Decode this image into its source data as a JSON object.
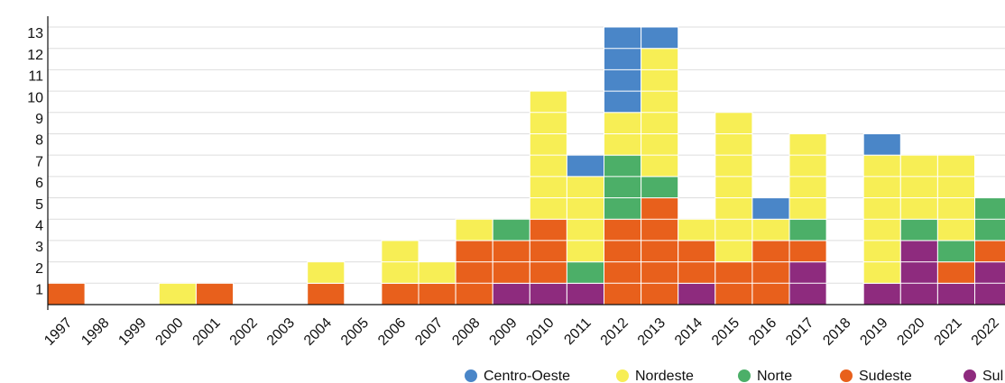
{
  "chart_data": {
    "type": "stacked_bar",
    "categories": [
      "1997",
      "1998",
      "1999",
      "2000",
      "2001",
      "2002",
      "2003",
      "2004",
      "2005",
      "2006",
      "2007",
      "2008",
      "2009",
      "2010",
      "2011",
      "2012",
      "2013",
      "2014",
      "2015",
      "2016",
      "2017",
      "2018",
      "2019",
      "2020",
      "2021",
      "2022"
    ],
    "series": [
      {
        "name": "Centro-Oeste",
        "color": "#4a86c8",
        "values": [
          0,
          0,
          0,
          0,
          0,
          0,
          0,
          0,
          0,
          0,
          0,
          0,
          0,
          0,
          1,
          4,
          1,
          0,
          0,
          1,
          0,
          0,
          1,
          0,
          0,
          0
        ]
      },
      {
        "name": "Nordeste",
        "color": "#f7ee55",
        "values": [
          0,
          0,
          0,
          1,
          0,
          0,
          0,
          1,
          0,
          2,
          1,
          1,
          0,
          6,
          4,
          2,
          6,
          1,
          7,
          1,
          4,
          0,
          6,
          3,
          4,
          0
        ]
      },
      {
        "name": "Norte",
        "color": "#4caf68",
        "values": [
          0,
          0,
          0,
          0,
          0,
          0,
          0,
          0,
          0,
          0,
          0,
          0,
          1,
          0,
          1,
          3,
          1,
          0,
          0,
          0,
          1,
          0,
          0,
          1,
          1,
          2
        ]
      },
      {
        "name": "Sudeste",
        "color": "#e8601c",
        "values": [
          1,
          0,
          0,
          0,
          1,
          0,
          0,
          1,
          0,
          1,
          1,
          3,
          2,
          3,
          0,
          4,
          5,
          2,
          2,
          3,
          1,
          0,
          0,
          0,
          1,
          1
        ]
      },
      {
        "name": "Sul",
        "color": "#8e2b7e",
        "values": [
          0,
          0,
          0,
          0,
          0,
          0,
          0,
          0,
          0,
          0,
          0,
          0,
          1,
          1,
          1,
          0,
          0,
          1,
          0,
          0,
          2,
          0,
          1,
          3,
          1,
          2
        ]
      }
    ],
    "ylim": [
      0,
      13
    ],
    "yticks": [
      1,
      2,
      3,
      4,
      5,
      6,
      7,
      8,
      9,
      10,
      11,
      12,
      13
    ],
    "grid": true,
    "legend": "bottom"
  }
}
